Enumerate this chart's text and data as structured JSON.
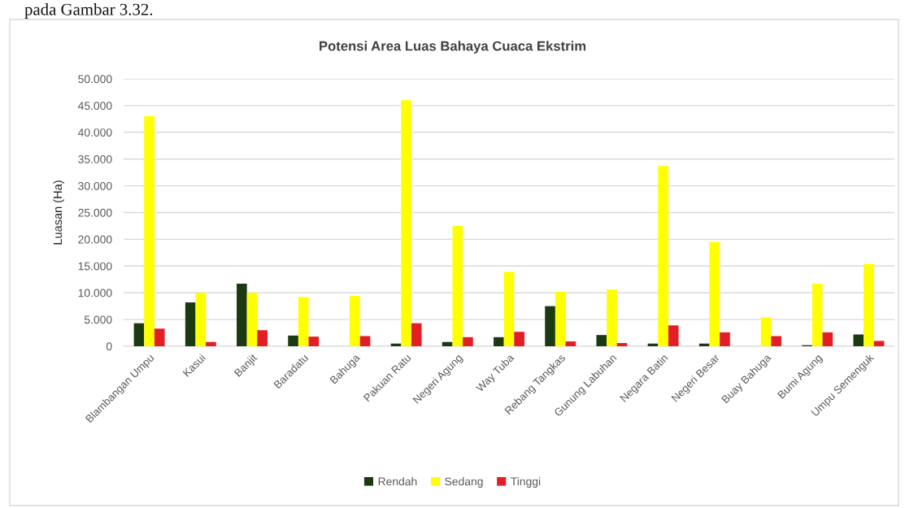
{
  "chart_data": {
    "type": "bar",
    "title": "Potensi Area Luas Bahaya Cuaca Ekstrim",
    "ylabel": "Luasan (Ha)",
    "categories": [
      "Blambangan Umpu",
      "Kasui",
      "Banjit",
      "Baradatu",
      "Bahuga",
      "Pakuan Ratu",
      "Negeri Agung",
      "Way Tuba",
      "Rebang Tangkas",
      "Gunung Labuhan",
      "Negara Batin",
      "Negeri Besar",
      "Buay Bahuga",
      "Bumi Agung",
      "Umpu Semenguk"
    ],
    "series": [
      {
        "name": "Rendah",
        "color": "#1b3a12",
        "values": [
          4300,
          8200,
          11700,
          2000,
          0,
          500,
          800,
          1700,
          7500,
          2100,
          500,
          500,
          0,
          200,
          2200
        ]
      },
      {
        "name": "Sedang",
        "color": "#ffff00",
        "values": [
          43000,
          10000,
          10000,
          9200,
          9400,
          46000,
          22500,
          13900,
          10200,
          10600,
          33700,
          19500,
          5400,
          11700,
          15400
        ]
      },
      {
        "name": "Tinggi",
        "color": "#e31e24",
        "values": [
          3300,
          800,
          3000,
          1800,
          1900,
          4300,
          1700,
          2700,
          900,
          600,
          3900,
          2600,
          1900,
          2600,
          1000
        ]
      }
    ],
    "ylim": [
      0,
      50000
    ],
    "yticks": [
      0,
      {
        "value": 5000,
        "label": "5.000"
      },
      {
        "value": 10000,
        "label": "10.000"
      },
      {
        "value": 15000,
        "label": "15.000"
      },
      {
        "value": 20000,
        "label": "20.000"
      },
      {
        "value": 25000,
        "label": "25.000"
      },
      {
        "value": 30000,
        "label": "30.000"
      },
      {
        "value": 35000,
        "label": "35.000"
      },
      {
        "value": 40000,
        "label": "40.000"
      },
      {
        "value": 45000,
        "label": "45.000"
      },
      {
        "value": 50000,
        "label": "50.000"
      }
    ],
    "grid": "y",
    "legend": "bottom",
    "annotations": [
      "pada Gambar 3.32."
    ]
  }
}
